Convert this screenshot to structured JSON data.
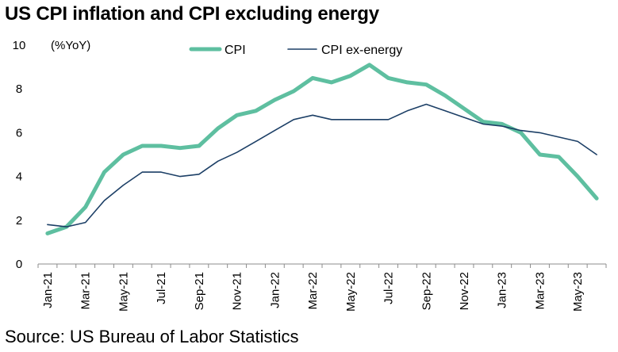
{
  "title": "US CPI inflation and CPI excluding energy",
  "source": "Source: US Bureau of Labor Statistics",
  "chart_data": {
    "type": "line",
    "title": "US CPI inflation and CPI excluding energy",
    "ylabel": "(%YoY)",
    "xlabel": "",
    "ylim": [
      0,
      10
    ],
    "yticks": [
      "0",
      "2",
      "4",
      "6",
      "8",
      "10"
    ],
    "grid": false,
    "legend_position": "top",
    "x_tick_labels": [
      "Jan-21",
      "Mar-21",
      "May-21",
      "Jul-21",
      "Sep-21",
      "Nov-21",
      "Jan-22",
      "Mar-22",
      "May-22",
      "Jul-22",
      "Sep-22",
      "Nov-22",
      "Jan-23",
      "Mar-23",
      "May-23"
    ],
    "x": [
      "Jan-21",
      "Feb-21",
      "Mar-21",
      "Apr-21",
      "May-21",
      "Jun-21",
      "Jul-21",
      "Aug-21",
      "Sep-21",
      "Oct-21",
      "Nov-21",
      "Dec-21",
      "Jan-22",
      "Feb-22",
      "Mar-22",
      "Apr-22",
      "May-22",
      "Jun-22",
      "Jul-22",
      "Aug-22",
      "Sep-22",
      "Oct-22",
      "Nov-22",
      "Dec-22",
      "Jan-23",
      "Feb-23",
      "Mar-23",
      "Apr-23",
      "May-23",
      "Jun-23"
    ],
    "series": [
      {
        "name": "CPI",
        "color": "#5ebfa0",
        "values": [
          1.4,
          1.7,
          2.6,
          4.2,
          5.0,
          5.4,
          5.4,
          5.3,
          5.4,
          6.2,
          6.8,
          7.0,
          7.5,
          7.9,
          8.5,
          8.3,
          8.6,
          9.1,
          8.5,
          8.3,
          8.2,
          7.7,
          7.1,
          6.5,
          6.4,
          6.0,
          5.0,
          4.9,
          4.0,
          3.0
        ]
      },
      {
        "name": "CPI ex-energy",
        "color": "#1c3f66",
        "values": [
          1.8,
          1.7,
          1.9,
          2.9,
          3.6,
          4.2,
          4.2,
          4.0,
          4.1,
          4.7,
          5.1,
          5.6,
          6.1,
          6.6,
          6.8,
          6.6,
          6.6,
          6.6,
          6.6,
          7.0,
          7.3,
          7.0,
          6.7,
          6.4,
          6.3,
          6.1,
          6.0,
          5.8,
          5.6,
          5.0
        ]
      }
    ]
  }
}
